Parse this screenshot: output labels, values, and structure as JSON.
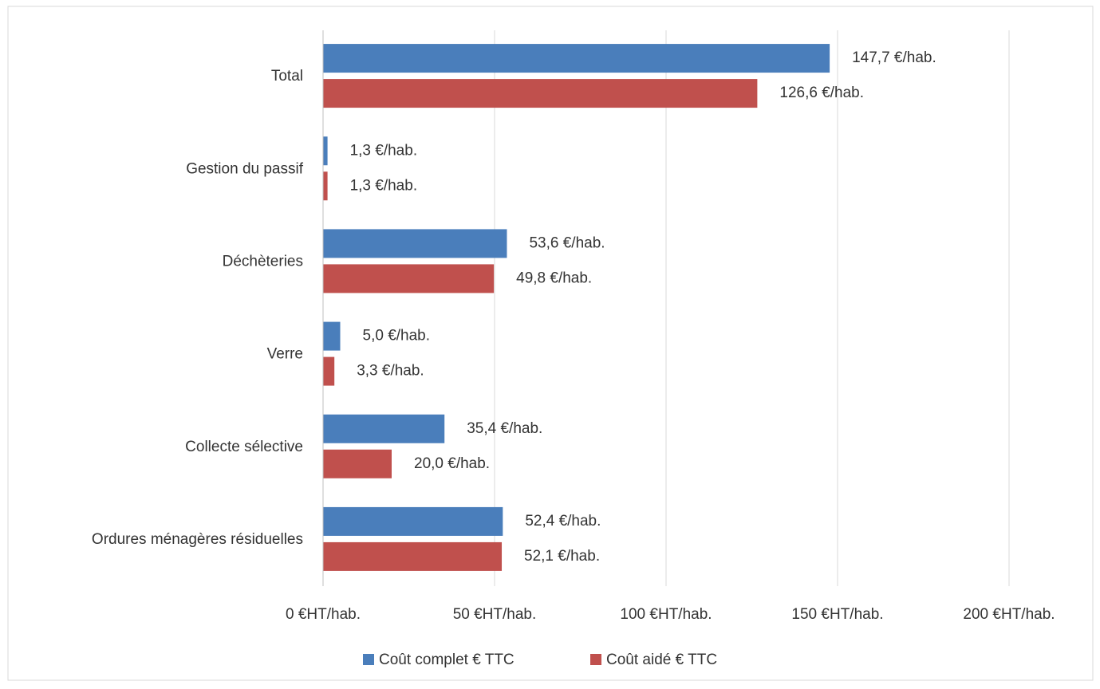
{
  "chart_data": {
    "type": "barh",
    "categories": [
      "Total",
      "Gestion du passif",
      "Déchèteries",
      "Verre",
      "Collecte sélective",
      "Ordures ménagères résiduelles"
    ],
    "series": [
      {
        "name": "Coût complet € TTC",
        "color": "#4a7ebb",
        "values": [
          147.7,
          1.3,
          53.6,
          5.0,
          35.4,
          52.4
        ],
        "value_labels": [
          "147,7 €/hab.",
          "1,3 €/hab.",
          "53,6 €/hab.",
          "5,0 €/hab.",
          "35,4 €/hab.",
          "52,4 €/hab."
        ]
      },
      {
        "name": "Coût aidé € TTC",
        "color": "#c0504d",
        "values": [
          126.6,
          1.3,
          49.8,
          3.3,
          20.0,
          52.1
        ],
        "value_labels": [
          "126,6 €/hab.",
          "1,3 €/hab.",
          "49,8 €/hab.",
          "3,3 €/hab.",
          "20,0 €/hab.",
          "52,1 €/hab."
        ]
      }
    ],
    "xlim": [
      0,
      200
    ],
    "xticks": [
      {
        "value": 0,
        "label": "0 €HT/hab."
      },
      {
        "value": 50,
        "label": "50 €HT/hab."
      },
      {
        "value": 100,
        "label": "100 €HT/hab."
      },
      {
        "value": 150,
        "label": "150 €HT/hab."
      },
      {
        "value": 200,
        "label": "200 €HT/hab."
      }
    ],
    "grid": true,
    "legend": "bottom"
  }
}
